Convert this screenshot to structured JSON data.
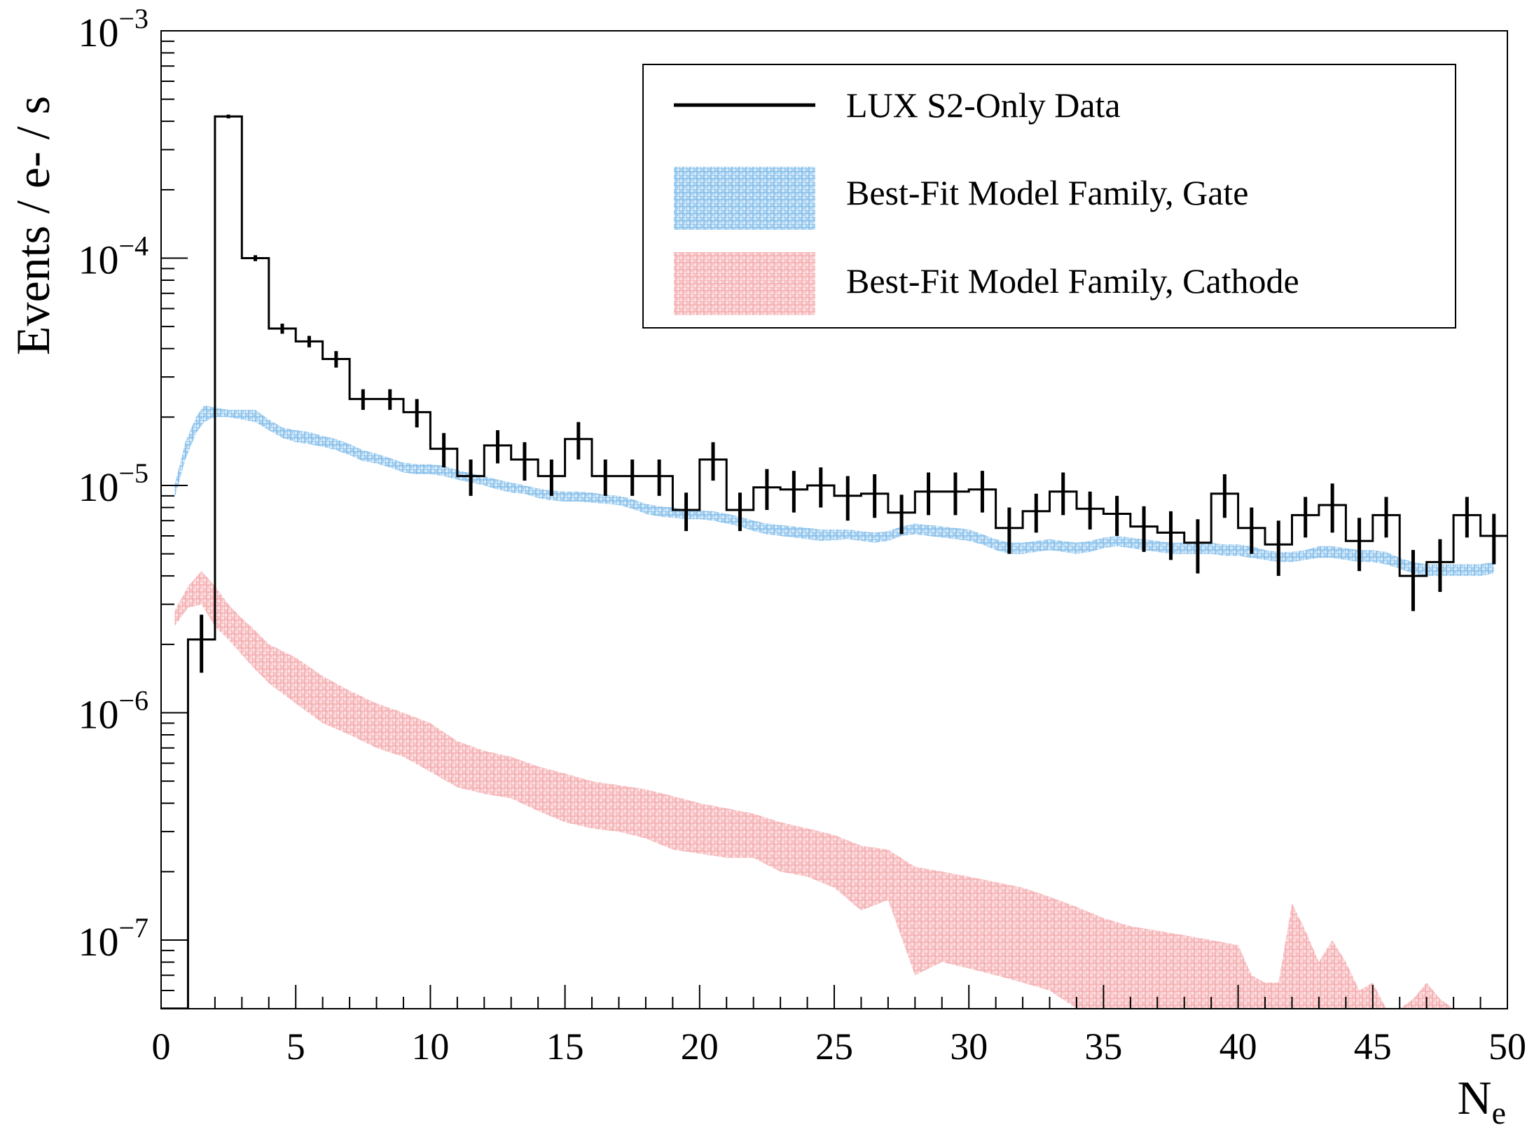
{
  "chart_data": {
    "type": "histogram",
    "title": "",
    "xlabel": "N",
    "xlabel_sub": "e",
    "ylabel": "Events / e- / s",
    "xlim": [
      0,
      50
    ],
    "ylim": [
      5e-08,
      0.001
    ],
    "yscale": "log",
    "grid": false,
    "legend_position": "top-right",
    "x_ticks": [
      0,
      5,
      10,
      15,
      20,
      25,
      30,
      35,
      40,
      45,
      50
    ],
    "x_tick_labels": [
      "0",
      "5",
      "10",
      "15",
      "20",
      "25",
      "30",
      "35",
      "40",
      "45",
      "50"
    ],
    "y_ticks": [
      {
        "value": 0.001,
        "base": "10",
        "exp": "−3"
      },
      {
        "value": 0.0001,
        "base": "10",
        "exp": "−4"
      },
      {
        "value": 1e-05,
        "base": "10",
        "exp": "−5"
      },
      {
        "value": 1e-06,
        "base": "10",
        "exp": "−6"
      },
      {
        "value": 1e-07,
        "base": "10",
        "exp": "−7"
      }
    ],
    "legend": [
      {
        "label": "LUX S2-Only Data",
        "style": "line",
        "color": "#000000"
      },
      {
        "label": "Best-Fit Model Family, Gate",
        "style": "hatch",
        "color": "#8ec5ee"
      },
      {
        "label": "Best-Fit Model Family, Cathode",
        "style": "hatch",
        "color": "#f5b3b6"
      }
    ],
    "series": [
      {
        "name": "LUX S2-Only Data",
        "kind": "step-histogram",
        "bin_width": 1,
        "bin_low_edges": [
          0,
          1,
          2,
          3,
          4,
          5,
          6,
          7,
          8,
          9,
          10,
          11,
          12,
          13,
          14,
          15,
          16,
          17,
          18,
          19,
          20,
          21,
          22,
          23,
          24,
          25,
          26,
          27,
          28,
          29,
          30,
          31,
          32,
          33,
          34,
          35,
          36,
          37,
          38,
          39,
          40,
          41,
          42,
          43,
          44,
          45,
          46,
          47,
          48,
          49
        ],
        "values": [
          5e-08,
          2.1e-06,
          0.00042,
          0.0001,
          4.9e-05,
          4.3e-05,
          3.6e-05,
          2.4e-05,
          2.4e-05,
          2.1e-05,
          1.45e-05,
          1.1e-05,
          1.5e-05,
          1.3e-05,
          1.1e-05,
          1.6e-05,
          1.1e-05,
          1.1e-05,
          1.1e-05,
          7.8e-06,
          1.3e-05,
          7.8e-06,
          9.8e-06,
          9.6e-06,
          1e-05,
          9e-06,
          9.2e-06,
          7.6e-06,
          9.4e-06,
          9.4e-06,
          9.6e-06,
          6.5e-06,
          7.7e-06,
          9.4e-06,
          7.9e-06,
          7.5e-06,
          6.6e-06,
          6.2e-06,
          5.6e-06,
          9.2e-06,
          6.5e-06,
          5.5e-06,
          7.4e-06,
          8.2e-06,
          5.7e-06,
          7.4e-06,
          4e-06,
          4.6e-06,
          7.4e-06,
          6e-06
        ],
        "errors": [
          0,
          6e-07,
          8e-06,
          3e-06,
          2.5e-06,
          2.5e-06,
          3e-06,
          2.5e-06,
          2.5e-06,
          3e-06,
          2.5e-06,
          2e-06,
          2.5e-06,
          2.5e-06,
          2e-06,
          3e-06,
          2e-06,
          2e-06,
          2e-06,
          1.5e-06,
          2.5e-06,
          1.5e-06,
          2e-06,
          2e-06,
          2e-06,
          2e-06,
          2e-06,
          1.5e-06,
          2e-06,
          2e-06,
          2e-06,
          1.5e-06,
          1.5e-06,
          2e-06,
          1.5e-06,
          1.5e-06,
          1.5e-06,
          1.5e-06,
          1.5e-06,
          2e-06,
          1.5e-06,
          1.5e-06,
          1.5e-06,
          2e-06,
          1.5e-06,
          1.5e-06,
          1.2e-06,
          1.2e-06,
          1.5e-06,
          1.5e-06
        ]
      },
      {
        "name": "Best-Fit Model Family, Gate",
        "kind": "band",
        "x": [
          0.5,
          0.9,
          1.3,
          1.6,
          2,
          2.5,
          3,
          3.5,
          4,
          4.5,
          5,
          5.5,
          6,
          6.5,
          7,
          7.5,
          8,
          8.5,
          9,
          9.5,
          10,
          10.5,
          11,
          11.5,
          12,
          12.5,
          13,
          13.5,
          14,
          14.5,
          15,
          15.5,
          16,
          16.5,
          17,
          17.5,
          18,
          18.5,
          19,
          19.5,
          20,
          20.5,
          21,
          21.5,
          22,
          22.5,
          23,
          23.5,
          24,
          24.5,
          25,
          25.5,
          26,
          26.5,
          27,
          27.5,
          28,
          28.5,
          29,
          29.5,
          30,
          30.5,
          31,
          31.5,
          32,
          32.5,
          33,
          33.5,
          34,
          34.5,
          35,
          35.5,
          36,
          36.5,
          37,
          37.5,
          38,
          38.5,
          39,
          39.5,
          40,
          40.5,
          41,
          41.5,
          42,
          42.5,
          43,
          43.5,
          44,
          44.5,
          45,
          45.5,
          46,
          46.5,
          47,
          47.5,
          48,
          48.5,
          49,
          49.5
        ],
        "lower": [
          8.8e-06,
          1.3e-05,
          1.7e-05,
          1.9e-05,
          2e-05,
          2e-05,
          1.95e-05,
          1.9e-05,
          1.75e-05,
          1.62e-05,
          1.55e-05,
          1.52e-05,
          1.48e-05,
          1.43e-05,
          1.36e-05,
          1.28e-05,
          1.25e-05,
          1.2e-05,
          1.14e-05,
          1.12e-05,
          1.12e-05,
          1.1e-05,
          1.06e-05,
          1.03e-05,
          1e-05,
          9.6e-06,
          9.3e-06,
          9.2e-06,
          8.8e-06,
          8.6e-06,
          8.5e-06,
          8.5e-06,
          8.4e-06,
          8.3e-06,
          8.2e-06,
          7.9e-06,
          7.5e-06,
          7.3e-06,
          7.2e-06,
          7.1e-06,
          7.1e-06,
          7e-06,
          6.8e-06,
          6.6e-06,
          6.3e-06,
          6.1e-06,
          6e-06,
          5.9e-06,
          5.8e-06,
          5.7e-06,
          5.75e-06,
          5.8e-06,
          5.7e-06,
          5.6e-06,
          5.7e-06,
          6e-06,
          6.1e-06,
          6e-06,
          5.9e-06,
          5.8e-06,
          5.7e-06,
          5.5e-06,
          5.2e-06,
          5e-06,
          5e-06,
          5.1e-06,
          5.2e-06,
          5.1e-06,
          5e-06,
          5.1e-06,
          5.3e-06,
          5.4e-06,
          5.3e-06,
          5.2e-06,
          5.1e-06,
          5e-06,
          5e-06,
          5e-06,
          5e-06,
          4.9e-06,
          4.9e-06,
          4.8e-06,
          4.7e-06,
          4.6e-06,
          4.6e-06,
          4.7e-06,
          4.8e-06,
          4.8e-06,
          4.7e-06,
          4.6e-06,
          4.6e-06,
          4.5e-06,
          4.3e-06,
          4.1e-06,
          4e-06,
          4e-06,
          4e-06,
          4e-06,
          4e-06,
          4.1e-06
        ],
        "upper": [
          1e-05,
          1.55e-05,
          2e-05,
          2.25e-05,
          2.2e-05,
          2.15e-05,
          2.15e-05,
          2.15e-05,
          1.95e-05,
          1.8e-05,
          1.75e-05,
          1.72e-05,
          1.65e-05,
          1.6e-05,
          1.52e-05,
          1.43e-05,
          1.38e-05,
          1.32e-05,
          1.26e-05,
          1.24e-05,
          1.24e-05,
          1.22e-05,
          1.17e-05,
          1.13e-05,
          1.1e-05,
          1.06e-05,
          1.03e-05,
          1e-05,
          9.7e-06,
          9.5e-06,
          9.4e-06,
          9.4e-06,
          9.3e-06,
          9.1e-06,
          9e-06,
          8.7e-06,
          8.3e-06,
          8.1e-06,
          8e-06,
          7.8e-06,
          7.8e-06,
          7.7e-06,
          7.5e-06,
          7.3e-06,
          7e-06,
          6.8e-06,
          6.7e-06,
          6.6e-06,
          6.5e-06,
          6.4e-06,
          6.4e-06,
          6.4e-06,
          6.3e-06,
          6.2e-06,
          6.3e-06,
          6.6e-06,
          6.8e-06,
          6.7e-06,
          6.6e-06,
          6.5e-06,
          6.4e-06,
          6.1e-06,
          5.8e-06,
          5.6e-06,
          5.6e-06,
          5.7e-06,
          5.8e-06,
          5.7e-06,
          5.6e-06,
          5.7e-06,
          5.9e-06,
          6e-06,
          5.9e-06,
          5.8e-06,
          5.7e-06,
          5.6e-06,
          5.6e-06,
          5.6e-06,
          5.6e-06,
          5.5e-06,
          5.5e-06,
          5.4e-06,
          5.2e-06,
          5.1e-06,
          5.1e-06,
          5.2e-06,
          5.4e-06,
          5.4e-06,
          5.3e-06,
          5.2e-06,
          5.2e-06,
          5.1e-06,
          4.8e-06,
          4.6e-06,
          4.5e-06,
          4.5e-06,
          4.5e-06,
          4.5e-06,
          4.5e-06,
          4.6e-06
        ]
      },
      {
        "name": "Best-Fit Model Family, Cathode",
        "kind": "band",
        "x": [
          0.5,
          1,
          1.5,
          2,
          2.5,
          3,
          3.5,
          4,
          5,
          6,
          7,
          8,
          9,
          10,
          11,
          12,
          13,
          14,
          15,
          16,
          17,
          18,
          19,
          20,
          21,
          22,
          23,
          24,
          25,
          26,
          27,
          28,
          29,
          30,
          31,
          32,
          33,
          34,
          35,
          36,
          37,
          38,
          39,
          40,
          40.5,
          41,
          41.5,
          42,
          42.5,
          43,
          43.5,
          44,
          44.5,
          45,
          45.5,
          46,
          46.5,
          47,
          47.5,
          48
        ],
        "lower": [
          2.4e-06,
          2.9e-06,
          3e-06,
          2.4e-06,
          2.1e-06,
          1.8e-06,
          1.55e-06,
          1.35e-06,
          1.1e-06,
          9e-07,
          8e-07,
          7e-07,
          6.4e-07,
          5.5e-07,
          4.7e-07,
          4.4e-07,
          4.2e-07,
          3.7e-07,
          3.3e-07,
          3.1e-07,
          3e-07,
          2.8e-07,
          2.5e-07,
          2.4e-07,
          2.3e-07,
          2.3e-07,
          2e-07,
          1.9e-07,
          1.7e-07,
          1.35e-07,
          1.5e-07,
          7e-08,
          8e-08,
          7.5e-08,
          7e-08,
          6.5e-08,
          6e-08,
          5e-08,
          5e-08,
          5e-08,
          5e-08,
          5e-08,
          5e-08,
          5e-08,
          5e-08,
          5e-08,
          5e-08,
          5e-08,
          5e-08,
          5e-08,
          5e-08,
          5e-08,
          5e-08,
          5e-08,
          5e-08,
          5e-08,
          5e-08,
          5e-08,
          5e-08,
          5e-08
        ],
        "upper": [
          2.8e-06,
          3.6e-06,
          4.2e-06,
          3.6e-06,
          3e-06,
          2.6e-06,
          2.3e-06,
          2e-06,
          1.75e-06,
          1.45e-06,
          1.25e-06,
          1.1e-06,
          1e-06,
          9e-07,
          7.5e-07,
          6.8e-07,
          6.4e-07,
          5.8e-07,
          5.4e-07,
          5e-07,
          4.8e-07,
          4.6e-07,
          4.3e-07,
          4e-07,
          3.8e-07,
          3.6e-07,
          3.3e-07,
          3.1e-07,
          2.9e-07,
          2.6e-07,
          2.5e-07,
          2.1e-07,
          2e-07,
          1.9e-07,
          1.8e-07,
          1.7e-07,
          1.55e-07,
          1.4e-07,
          1.25e-07,
          1.15e-07,
          1.1e-07,
          1.05e-07,
          1e-07,
          9.5e-08,
          7e-08,
          6.5e-08,
          6.5e-08,
          1.45e-07,
          1.1e-07,
          8e-08,
          1e-07,
          8e-08,
          6e-08,
          6.5e-08,
          5e-08,
          5e-08,
          5.5e-08,
          6.5e-08,
          5.5e-08,
          5e-08
        ]
      }
    ]
  }
}
